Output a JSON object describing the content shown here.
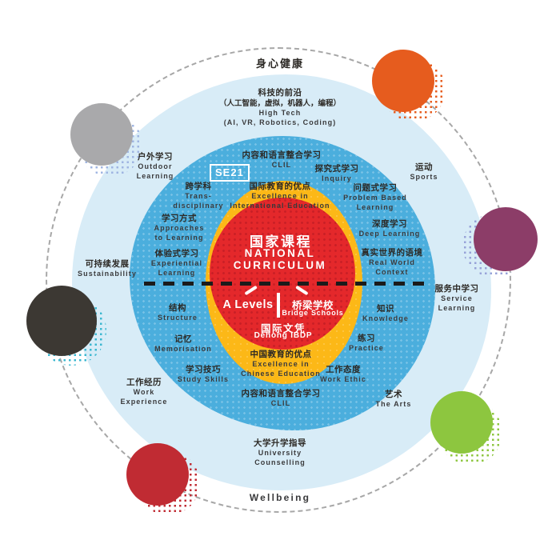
{
  "ring_top": "身心健康",
  "ring_bottom": "Wellbeing",
  "logo": "SE21",
  "center": {
    "zh": "国家课程",
    "en1": "NATIONAL",
    "en2": "CURRICULUM",
    "left_program": "A Levels",
    "right_program_zh": "桥梁学校",
    "right_program_en": "Bridge Schools",
    "bottom_program_zh": "国际文凭",
    "bottom_program_en": "Dehong IBDP"
  },
  "labels": [
    {
      "id": "high-tech",
      "zh": [
        "科技的前沿",
        "（人工智能，虚拟，机器人，编程）"
      ],
      "en": [
        "High Tech",
        "(AI, VR, Robotics, Coding)"
      ]
    },
    {
      "id": "outdoor",
      "zh": [
        "户外学习"
      ],
      "en": [
        "Outdoor",
        "Learning"
      ]
    },
    {
      "id": "clil-top",
      "zh": [
        "内容和语言整合学习"
      ],
      "en": [
        "CLIL"
      ]
    },
    {
      "id": "inquiry",
      "zh": [
        "探究式学习"
      ],
      "en": [
        "Inquiry"
      ]
    },
    {
      "id": "sports",
      "zh": [
        "运动"
      ],
      "en": [
        "Sports"
      ]
    },
    {
      "id": "trans",
      "zh": [
        "跨学科"
      ],
      "en": [
        "Trans-",
        "disciplinary"
      ]
    },
    {
      "id": "excellence-intl",
      "zh": [
        "国际教育的优点"
      ],
      "en": [
        "Excellence in",
        "International Education"
      ]
    },
    {
      "id": "pbl",
      "zh": [
        "问题式学习"
      ],
      "en": [
        "Problem Based",
        "Learning"
      ]
    },
    {
      "id": "approaches",
      "zh": [
        "学习方式"
      ],
      "en": [
        "Approaches",
        "to Learning"
      ]
    },
    {
      "id": "deep",
      "zh": [
        "深度学习"
      ],
      "en": [
        "Deep Learning"
      ]
    },
    {
      "id": "experiential",
      "zh": [
        "体验式学习"
      ],
      "en": [
        "Experiential",
        "Learning"
      ]
    },
    {
      "id": "sustainability",
      "zh": [
        "可持续发展"
      ],
      "en": [
        "Sustainability"
      ]
    },
    {
      "id": "real-world",
      "zh": [
        "真实世界的语境"
      ],
      "en": [
        "Real World",
        "Context"
      ]
    },
    {
      "id": "service",
      "zh": [
        "服务中学习"
      ],
      "en": [
        "Service",
        "Learning"
      ]
    },
    {
      "id": "structure",
      "zh": [
        "结构"
      ],
      "en": [
        "Structure"
      ]
    },
    {
      "id": "knowledge",
      "zh": [
        "知识"
      ],
      "en": [
        "Knowledge"
      ]
    },
    {
      "id": "memorisation",
      "zh": [
        "记忆"
      ],
      "en": [
        "Memorisation"
      ]
    },
    {
      "id": "practice",
      "zh": [
        "练习"
      ],
      "en": [
        "Practice"
      ]
    },
    {
      "id": "study-skills",
      "zh": [
        "学习技巧"
      ],
      "en": [
        "Study Skills"
      ]
    },
    {
      "id": "excellence-chinese",
      "zh": [
        "中国教育的优点"
      ],
      "en": [
        "Excellence in",
        "Chinese Education"
      ]
    },
    {
      "id": "work-ethic",
      "zh": [
        "工作态度"
      ],
      "en": [
        "Work Ethic"
      ]
    },
    {
      "id": "work-exp",
      "zh": [
        "工作经历"
      ],
      "en": [
        "Work",
        "Experience"
      ]
    },
    {
      "id": "clil-bottom",
      "zh": [
        "内容和语言整合学习"
      ],
      "en": [
        "CLIL"
      ]
    },
    {
      "id": "arts",
      "zh": [
        "艺术"
      ],
      "en": [
        "The Arts"
      ]
    },
    {
      "id": "university",
      "zh": [
        "大学升学指导"
      ],
      "en": [
        "University",
        "Counselling"
      ]
    }
  ],
  "colors": {
    "outer_ring_blue": "#d8ecf7",
    "pedagogy_blue": "#4baedd",
    "excellence_yellow": "#fcb817",
    "curriculum_red": "#e4282b",
    "accent_orange": "#e65c1e",
    "accent_gray": "#a9a9ab",
    "accent_purple": "#8c3d68",
    "accent_black": "#3c3833",
    "accent_red": "#c02b33",
    "accent_green": "#8dc63f",
    "dashed_ring_gray": "#a7a7a7",
    "divider_black": "#1b1b1b"
  }
}
